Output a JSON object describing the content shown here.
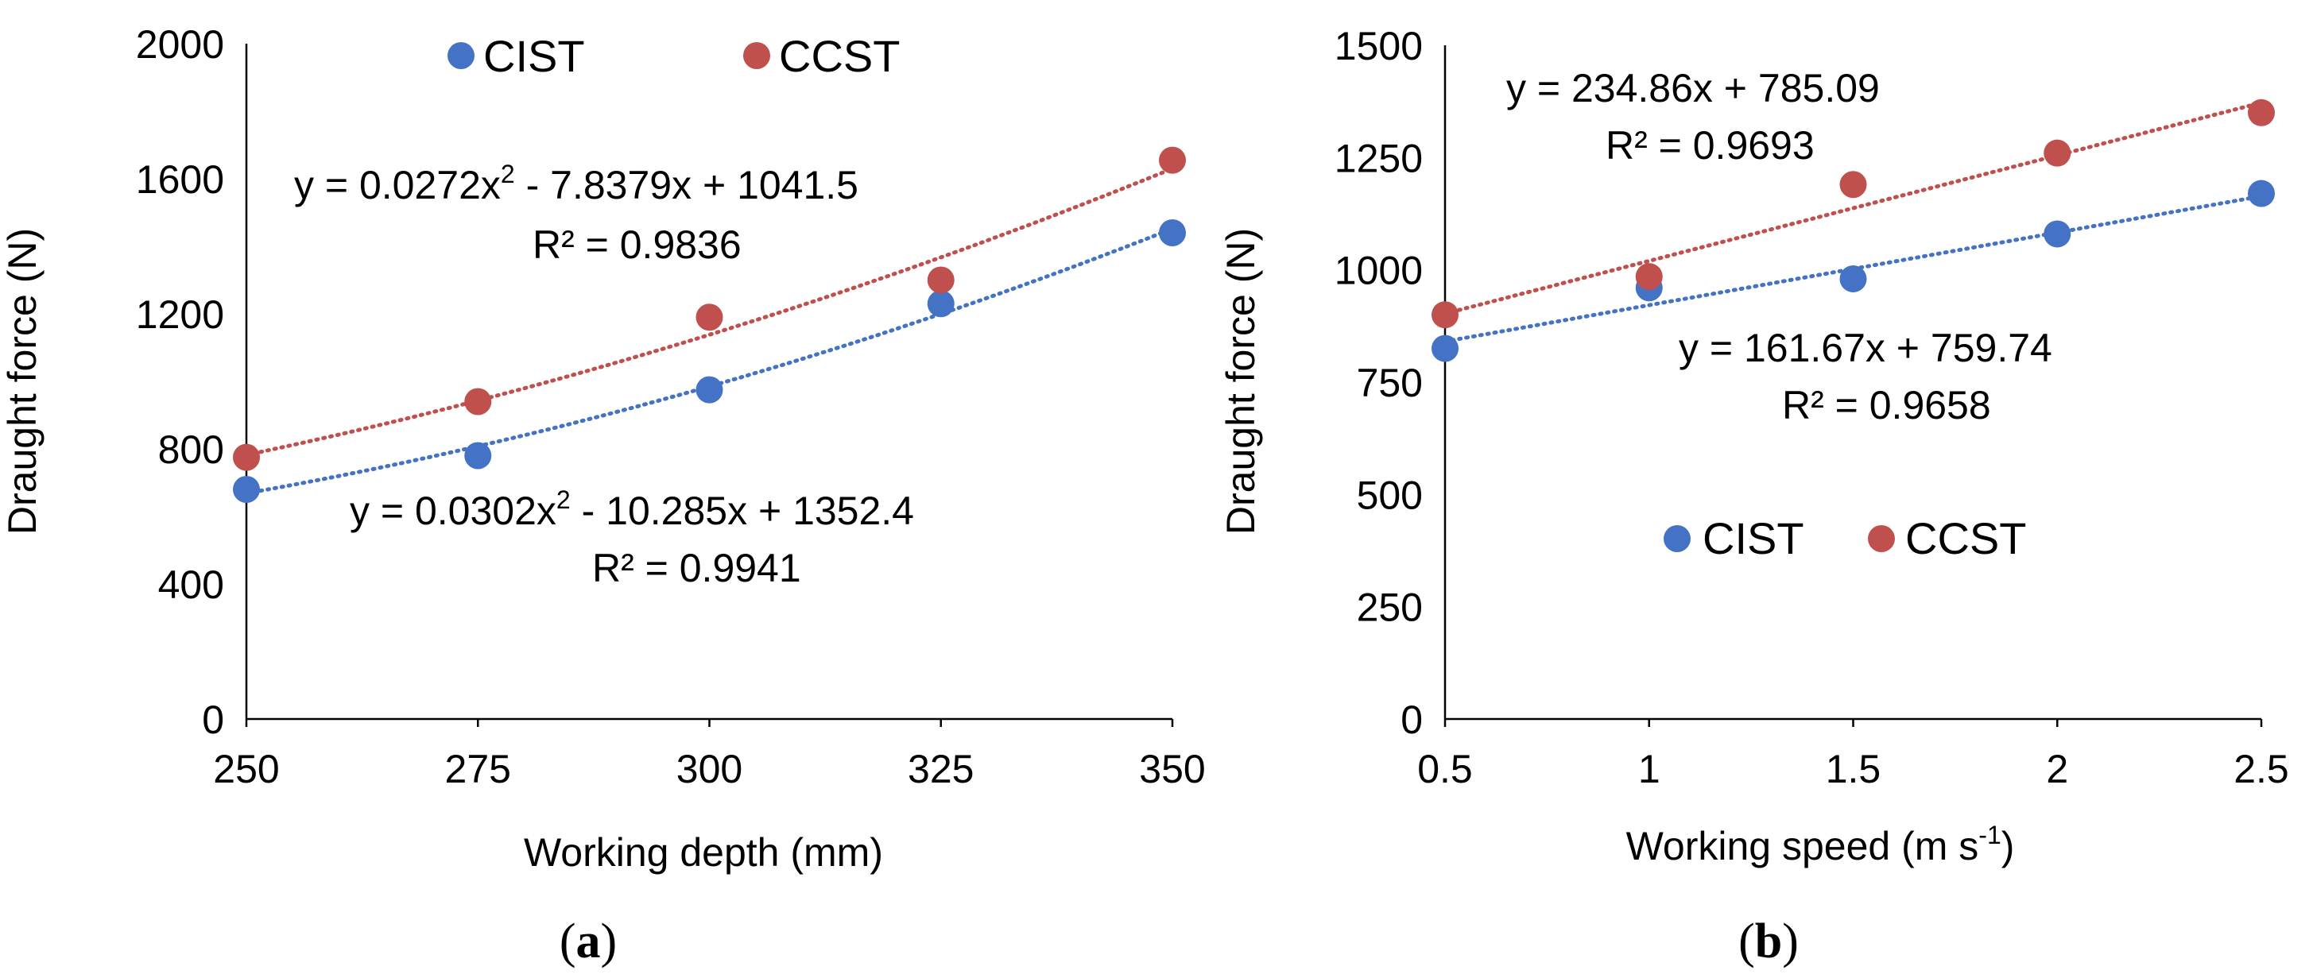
{
  "colors": {
    "CIST": "#4472C4",
    "CCST": "#C0504D"
  },
  "chart_data": [
    {
      "type": "scatter",
      "panel_label": "a",
      "xlabel": "Working depth (mm)",
      "ylabel": "Draught force (N)",
      "x": [
        250,
        275,
        300,
        325,
        350
      ],
      "xticks": [
        250,
        275,
        300,
        325,
        350
      ],
      "yticks": [
        0,
        400,
        800,
        1200,
        1600,
        2000
      ],
      "xlim": [
        250,
        350
      ],
      "ylim": [
        0,
        2000
      ],
      "legend": {
        "position": "top-center",
        "entries": [
          "CIST",
          "CCST"
        ]
      },
      "series": [
        {
          "name": "CIST",
          "values": [
            680,
            780,
            975,
            1230,
            1440
          ],
          "trendline": {
            "type": "poly2",
            "a": 0.0302,
            "b": -10.285,
            "c": 1352.4
          },
          "equation": {
            "pre": "y = 0.0302x",
            "sup": "2",
            "post": " - 10.285x + 1352.4"
          },
          "r2": "R² = 0.9941"
        },
        {
          "name": "CCST",
          "values": [
            775,
            940,
            1190,
            1300,
            1655
          ],
          "trendline": {
            "type": "poly2",
            "a": 0.0272,
            "b": -7.8379,
            "c": 1041.5
          },
          "equation": {
            "pre": "y = 0.0272x",
            "sup": "2",
            "post": " - 7.8379x + 1041.5"
          },
          "r2": "R² = 0.9836"
        }
      ]
    },
    {
      "type": "scatter",
      "panel_label": "b",
      "xlabel": "Working speed (m s",
      "xlabel_sup": "-1",
      "xlabel_post": ")",
      "ylabel": "Draught force (N)",
      "x": [
        0.5,
        1,
        1.5,
        2,
        2.5
      ],
      "xticks": [
        "0.5",
        "1",
        "1.5",
        "2",
        "2.5"
      ],
      "yticks": [
        0,
        250,
        500,
        750,
        1000,
        1250,
        1500
      ],
      "xlim": [
        0.5,
        2.5
      ],
      "ylim": [
        0,
        1500
      ],
      "legend": {
        "position": "center",
        "entries": [
          "CIST",
          "CCST"
        ]
      },
      "series": [
        {
          "name": "CIST",
          "values": [
            825,
            960,
            980,
            1080,
            1170
          ],
          "trendline": {
            "type": "linear",
            "m": 161.67,
            "c": 759.74
          },
          "equation": {
            "pre": "y = 161.67x + 759.74",
            "sup": "",
            "post": ""
          },
          "r2": "R² = 0.9658"
        },
        {
          "name": "CCST",
          "values": [
            900,
            985,
            1190,
            1260,
            1350
          ],
          "trendline": {
            "type": "linear",
            "m": 234.86,
            "c": 785.09
          },
          "equation": {
            "pre": "y = 234.86x + 785.09",
            "sup": "",
            "post": ""
          },
          "r2": "R² = 0.9693"
        }
      ]
    }
  ]
}
